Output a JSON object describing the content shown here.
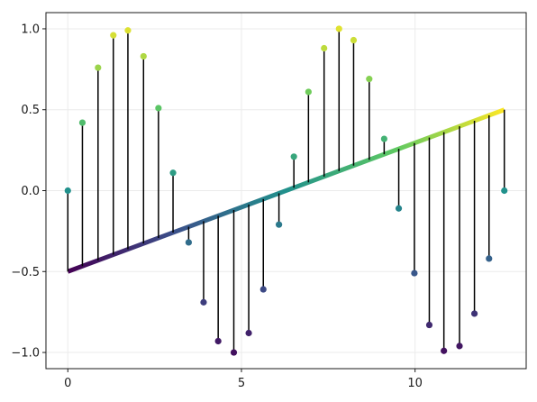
{
  "chart_data": {
    "type": "stem",
    "title": "",
    "xlabel": "",
    "ylabel": "",
    "xlim": [
      -0.63,
      13.2
    ],
    "ylim": [
      -1.1,
      1.1
    ],
    "grid": true,
    "x_ticks": [
      0,
      5,
      10
    ],
    "x_tick_labels": [
      "0",
      "5",
      "10"
    ],
    "y_ticks": [
      -1.0,
      -0.5,
      0.0,
      0.5,
      1.0
    ],
    "y_tick_labels": [
      "−1.0",
      "−0.5",
      "0.0",
      "0.5",
      "1.0"
    ],
    "offset_line": {
      "from": [
        0,
        -0.5
      ],
      "to": [
        12.57,
        0.5
      ],
      "colormap": "viridis"
    },
    "marker_colormap": "viridis",
    "points": {
      "x": [
        0.0,
        0.42,
        0.87,
        1.31,
        1.73,
        2.18,
        2.61,
        3.03,
        3.48,
        3.91,
        4.33,
        4.78,
        5.21,
        5.63,
        6.08,
        6.51,
        6.93,
        7.38,
        7.81,
        8.23,
        8.68,
        9.11,
        9.53,
        9.98,
        10.41,
        10.83,
        11.28,
        11.71,
        12.13,
        12.57
      ],
      "y": [
        0.0,
        0.42,
        0.76,
        0.96,
        0.99,
        0.83,
        0.51,
        0.11,
        -0.32,
        -0.69,
        -0.93,
        -1.0,
        -0.88,
        -0.61,
        -0.21,
        0.21,
        0.61,
        0.88,
        1.0,
        0.93,
        0.69,
        0.32,
        -0.11,
        -0.51,
        -0.83,
        -0.99,
        -0.96,
        -0.76,
        -0.42,
        0.0
      ]
    }
  }
}
